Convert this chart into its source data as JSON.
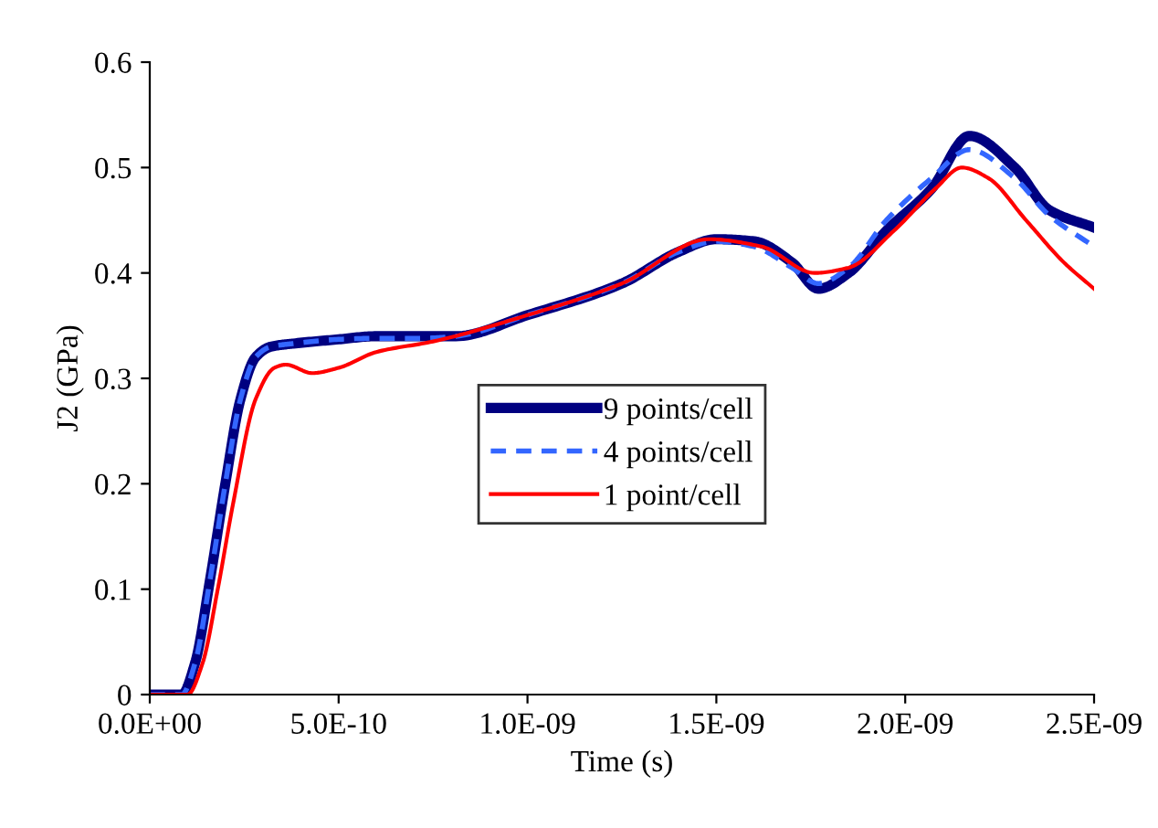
{
  "chart_data": {
    "type": "line",
    "xlabel": "Time (s)",
    "ylabel": "J2 (GPa)",
    "xlim": [
      0,
      2.5e-09
    ],
    "xticks": [
      {
        "value": 0,
        "label": "0.0E+00"
      },
      {
        "value": 5e-10,
        "label": "5.0E-10"
      },
      {
        "value": 1e-09,
        "label": "1.0E-09"
      },
      {
        "value": 1.5e-09,
        "label": "1.5E-09"
      },
      {
        "value": 2e-09,
        "label": "2.0E-09"
      },
      {
        "value": 2.5e-09,
        "label": "2.5E-09"
      }
    ],
    "ylim": [
      0,
      0.6
    ],
    "yticks": [
      0,
      0.1,
      0.2,
      0.3,
      0.4,
      0.5,
      0.6
    ],
    "grid": false,
    "legend": "center",
    "marker": "none",
    "series": [
      {
        "name": "9 points/cell",
        "color": "#000080",
        "line_style": "solid",
        "x": [
          0,
          8.5e-11,
          1.2e-10,
          1.6e-10,
          2e-10,
          2.4e-10,
          2.8e-10,
          3.2e-10,
          3.8e-10,
          5e-10,
          6e-10,
          7.2e-10,
          8.1e-10,
          1e-09,
          1.25e-09,
          1.4e-09,
          1.5e-09,
          1.6e-09,
          1.7e-09,
          1.77e-09,
          1.85e-09,
          1.95e-09,
          2.07e-09,
          2.17e-09,
          2.29e-09,
          2.38e-09,
          2.5e-09
        ],
        "values": [
          0,
          0,
          0.03,
          0.11,
          0.2,
          0.28,
          0.32,
          0.33,
          0.333,
          0.337,
          0.34,
          0.34,
          0.34,
          0.36,
          0.39,
          0.42,
          0.432,
          0.43,
          0.41,
          0.385,
          0.4,
          0.44,
          0.48,
          0.53,
          0.5,
          0.46,
          0.443
        ]
      },
      {
        "name": "4 points/cell",
        "color": "#3366ff",
        "line_style": "dashed",
        "x": [
          0,
          8.5e-11,
          1.2e-10,
          1.6e-10,
          2e-10,
          2.4e-10,
          2.8e-10,
          3.2e-10,
          3.8e-10,
          5e-10,
          6e-10,
          7.2e-10,
          8.1e-10,
          1e-09,
          1.25e-09,
          1.4e-09,
          1.5e-09,
          1.6e-09,
          1.7e-09,
          1.77e-09,
          1.85e-09,
          1.95e-09,
          2.07e-09,
          2.17e-09,
          2.29e-09,
          2.38e-09,
          2.5e-09
        ],
        "values": [
          0,
          0,
          0.03,
          0.11,
          0.2,
          0.28,
          0.32,
          0.33,
          0.333,
          0.337,
          0.338,
          0.338,
          0.34,
          0.36,
          0.39,
          0.42,
          0.43,
          0.425,
          0.405,
          0.39,
          0.405,
          0.45,
          0.49,
          0.517,
          0.49,
          0.455,
          0.425
        ]
      },
      {
        "name": "1 point/cell",
        "color": "#ff0000",
        "line_style": "solid",
        "x": [
          0,
          1e-10,
          1.4e-10,
          1.8e-10,
          2.2e-10,
          2.8e-10,
          3.3e-10,
          3.6e-10,
          4.3e-10,
          5e-10,
          6e-10,
          7.5e-10,
          1e-09,
          1.25e-09,
          1.48e-09,
          1.62e-09,
          1.76e-09,
          1.85e-09,
          1.97e-09,
          2.08e-09,
          2.15e-09,
          2.22e-09,
          2.32e-09,
          2.42e-09,
          2.5e-09
        ],
        "values": [
          0,
          0,
          0.03,
          0.1,
          0.18,
          0.28,
          0.31,
          0.313,
          0.305,
          0.31,
          0.325,
          0.335,
          0.36,
          0.39,
          0.432,
          0.425,
          0.4,
          0.405,
          0.44,
          0.48,
          0.5,
          0.49,
          0.45,
          0.41,
          0.385
        ]
      }
    ]
  }
}
